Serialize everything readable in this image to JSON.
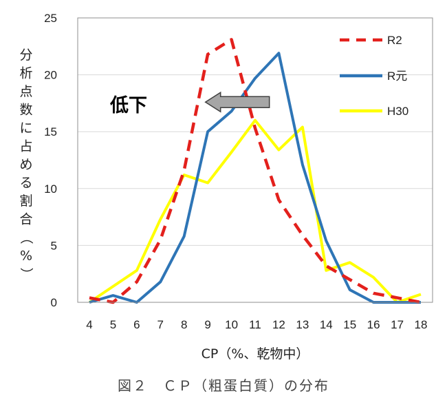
{
  "chart_data": {
    "type": "line",
    "x": [
      4,
      5,
      6,
      7,
      8,
      9,
      10,
      11,
      12,
      13,
      14,
      15,
      16,
      17,
      18
    ],
    "xlabel": "CP（%、乾物中）",
    "ylabel": "分析点数に占める割合（%）",
    "ylim": [
      0,
      25
    ],
    "yticks": [
      0,
      5,
      10,
      15,
      20,
      25
    ],
    "grid": true,
    "legend_position": "top-right",
    "series": [
      {
        "name": "R2",
        "color": "#e3201c",
        "dash": true,
        "values": [
          0.4,
          0,
          1.8,
          5.5,
          11.6,
          21.8,
          23.1,
          15.3,
          9,
          5.9,
          3.2,
          2,
          0.8,
          0.4,
          0
        ]
      },
      {
        "name": "R元",
        "color": "#2e75b6",
        "dash": false,
        "values": [
          0,
          0.6,
          0,
          1.8,
          5.8,
          15,
          16.8,
          19.7,
          21.9,
          12.1,
          5.4,
          1.1,
          0,
          0,
          0
        ]
      },
      {
        "name": "H30",
        "color": "#ffff00",
        "dash": false,
        "values": [
          0,
          1.4,
          2.8,
          7.3,
          11.2,
          10.5,
          13.2,
          16,
          13.4,
          15.4,
          2.8,
          3.5,
          2.2,
          0,
          0.7
        ]
      }
    ],
    "annotation": {
      "text": "低下",
      "arrow_from_x": 11.6,
      "arrow_to_x": 8.9,
      "arrow_y": 17.6,
      "arrow_color": "#a6a6a6"
    }
  },
  "caption": "図２　ＣＰ（粗蛋白質）の分布"
}
